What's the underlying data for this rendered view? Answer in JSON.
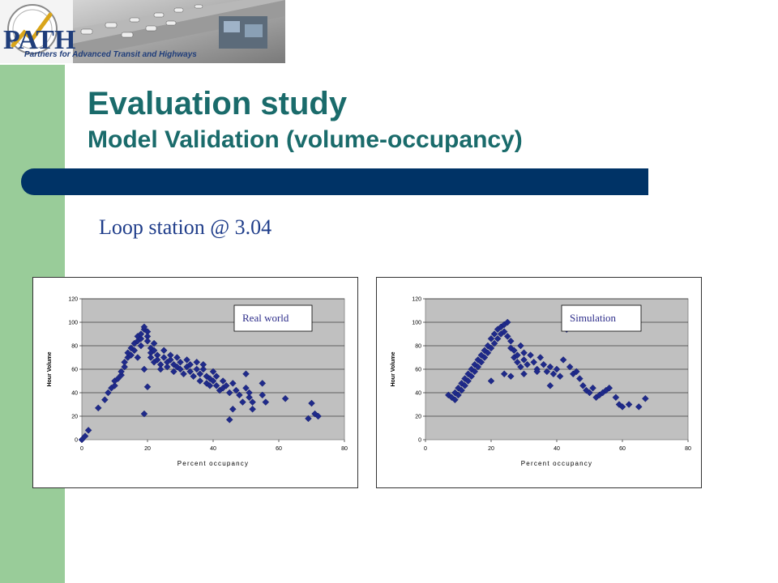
{
  "header": {
    "logo_text": "Partners for Advanced Transit and Highways",
    "logo_mark": "PATH"
  },
  "slide": {
    "title": "Evaluation study",
    "subtitle": "Model Validation (volume-occupancy)",
    "heading": "Loop station @ 3.04"
  },
  "colors": {
    "accent_band": "#003366",
    "title": "#1a6b6b",
    "side_bar": "#99cc99",
    "marker": "#1f2a8a",
    "plot_bg": "#c0c0c0"
  },
  "chart_data": [
    {
      "type": "scatter",
      "title": "",
      "legend_label": "Real world",
      "xlabel": "Percent occupancy",
      "ylabel": "Hour Volume",
      "xlim": [
        0,
        80
      ],
      "ylim": [
        0,
        120
      ],
      "x_ticks": [
        "0",
        "20",
        "40",
        "60",
        "80"
      ],
      "y_ticks": [
        "0",
        "20",
        "40",
        "60",
        "80",
        "100",
        "120"
      ],
      "grid": true,
      "points": [
        [
          0,
          0
        ],
        [
          1,
          3
        ],
        [
          2,
          8
        ],
        [
          5,
          27
        ],
        [
          7,
          34
        ],
        [
          8,
          40
        ],
        [
          9,
          44
        ],
        [
          10,
          46
        ],
        [
          10,
          50
        ],
        [
          11,
          52
        ],
        [
          12,
          55
        ],
        [
          12,
          58
        ],
        [
          13,
          62
        ],
        [
          13,
          66
        ],
        [
          14,
          70
        ],
        [
          14,
          74
        ],
        [
          15,
          72
        ],
        [
          15,
          78
        ],
        [
          16,
          76
        ],
        [
          16,
          82
        ],
        [
          17,
          84
        ],
        [
          17,
          88
        ],
        [
          17,
          70
        ],
        [
          18,
          80
        ],
        [
          18,
          86
        ],
        [
          18,
          90
        ],
        [
          19,
          94
        ],
        [
          19,
          96
        ],
        [
          20,
          92
        ],
        [
          20,
          88
        ],
        [
          20,
          84
        ],
        [
          21,
          78
        ],
        [
          21,
          74
        ],
        [
          21,
          70
        ],
        [
          22,
          76
        ],
        [
          22,
          82
        ],
        [
          22,
          66
        ],
        [
          23,
          72
        ],
        [
          23,
          68
        ],
        [
          24,
          64
        ],
        [
          24,
          60
        ],
        [
          25,
          76
        ],
        [
          25,
          70
        ],
        [
          26,
          66
        ],
        [
          26,
          62
        ],
        [
          27,
          72
        ],
        [
          27,
          68
        ],
        [
          28,
          64
        ],
        [
          28,
          58
        ],
        [
          29,
          62
        ],
        [
          29,
          70
        ],
        [
          30,
          66
        ],
        [
          30,
          60
        ],
        [
          31,
          56
        ],
        [
          32,
          62
        ],
        [
          32,
          68
        ],
        [
          33,
          64
        ],
        [
          33,
          58
        ],
        [
          34,
          54
        ],
        [
          35,
          60
        ],
        [
          35,
          66
        ],
        [
          36,
          56
        ],
        [
          36,
          50
        ],
        [
          37,
          60
        ],
        [
          37,
          64
        ],
        [
          38,
          54
        ],
        [
          38,
          48
        ],
        [
          39,
          52
        ],
        [
          39,
          46
        ],
        [
          40,
          58
        ],
        [
          40,
          50
        ],
        [
          41,
          46
        ],
        [
          41,
          54
        ],
        [
          42,
          42
        ],
        [
          43,
          50
        ],
        [
          43,
          44
        ],
        [
          44,
          46
        ],
        [
          45,
          40
        ],
        [
          46,
          48
        ],
        [
          47,
          42
        ],
        [
          48,
          38
        ],
        [
          49,
          32
        ],
        [
          50,
          44
        ],
        [
          50,
          56
        ],
        [
          51,
          36
        ],
        [
          51,
          40
        ],
        [
          52,
          32
        ],
        [
          52,
          26
        ],
        [
          55,
          48
        ],
        [
          55,
          38
        ],
        [
          56,
          32
        ],
        [
          19,
          60
        ],
        [
          20,
          45
        ],
        [
          19,
          22
        ],
        [
          45,
          17
        ],
        [
          46,
          26
        ],
        [
          62,
          35
        ],
        [
          69,
          18
        ],
        [
          70,
          31
        ],
        [
          71,
          22
        ],
        [
          72,
          20
        ]
      ]
    },
    {
      "type": "scatter",
      "title": "",
      "legend_label": "Simulation",
      "xlabel": "Percent occupancy",
      "ylabel": "Hour Volume",
      "xlim": [
        0,
        80
      ],
      "ylim": [
        0,
        120
      ],
      "x_ticks": [
        "0",
        "20",
        "40",
        "60",
        "80"
      ],
      "y_ticks": [
        "0",
        "20",
        "40",
        "60",
        "80",
        "100",
        "120"
      ],
      "grid": true,
      "points": [
        [
          7,
          38
        ],
        [
          8,
          36
        ],
        [
          9,
          34
        ],
        [
          9,
          40
        ],
        [
          10,
          44
        ],
        [
          10,
          38
        ],
        [
          11,
          48
        ],
        [
          11,
          42
        ],
        [
          12,
          52
        ],
        [
          12,
          46
        ],
        [
          13,
          56
        ],
        [
          13,
          50
        ],
        [
          14,
          60
        ],
        [
          14,
          54
        ],
        [
          15,
          64
        ],
        [
          15,
          58
        ],
        [
          16,
          68
        ],
        [
          16,
          62
        ],
        [
          17,
          72
        ],
        [
          17,
          66
        ],
        [
          18,
          76
        ],
        [
          18,
          70
        ],
        [
          19,
          80
        ],
        [
          19,
          74
        ],
        [
          20,
          86
        ],
        [
          20,
          78
        ],
        [
          21,
          90
        ],
        [
          21,
          82
        ],
        [
          22,
          94
        ],
        [
          22,
          86
        ],
        [
          23,
          96
        ],
        [
          23,
          90
        ],
        [
          24,
          98
        ],
        [
          24,
          92
        ],
        [
          25,
          100
        ],
        [
          25,
          88
        ],
        [
          26,
          84
        ],
        [
          26,
          78
        ],
        [
          27,
          76
        ],
        [
          27,
          70
        ],
        [
          28,
          72
        ],
        [
          28,
          66
        ],
        [
          29,
          80
        ],
        [
          29,
          62
        ],
        [
          30,
          74
        ],
        [
          30,
          68
        ],
        [
          31,
          64
        ],
        [
          32,
          72
        ],
        [
          33,
          66
        ],
        [
          34,
          60
        ],
        [
          35,
          70
        ],
        [
          36,
          64
        ],
        [
          37,
          58
        ],
        [
          38,
          62
        ],
        [
          39,
          56
        ],
        [
          40,
          60
        ],
        [
          41,
          54
        ],
        [
          42,
          68
        ],
        [
          43,
          94
        ],
        [
          44,
          62
        ],
        [
          45,
          56
        ],
        [
          46,
          58
        ],
        [
          47,
          52
        ],
        [
          48,
          46
        ],
        [
          49,
          42
        ],
        [
          50,
          40
        ],
        [
          51,
          44
        ],
        [
          52,
          36
        ],
        [
          53,
          38
        ],
        [
          54,
          40
        ],
        [
          55,
          42
        ],
        [
          56,
          44
        ],
        [
          58,
          36
        ],
        [
          59,
          30
        ],
        [
          60,
          28
        ],
        [
          62,
          30
        ],
        [
          65,
          28
        ],
        [
          67,
          35
        ],
        [
          20,
          50
        ],
        [
          24,
          56
        ],
        [
          26,
          54
        ],
        [
          30,
          56
        ],
        [
          34,
          58
        ],
        [
          38,
          46
        ]
      ]
    }
  ]
}
